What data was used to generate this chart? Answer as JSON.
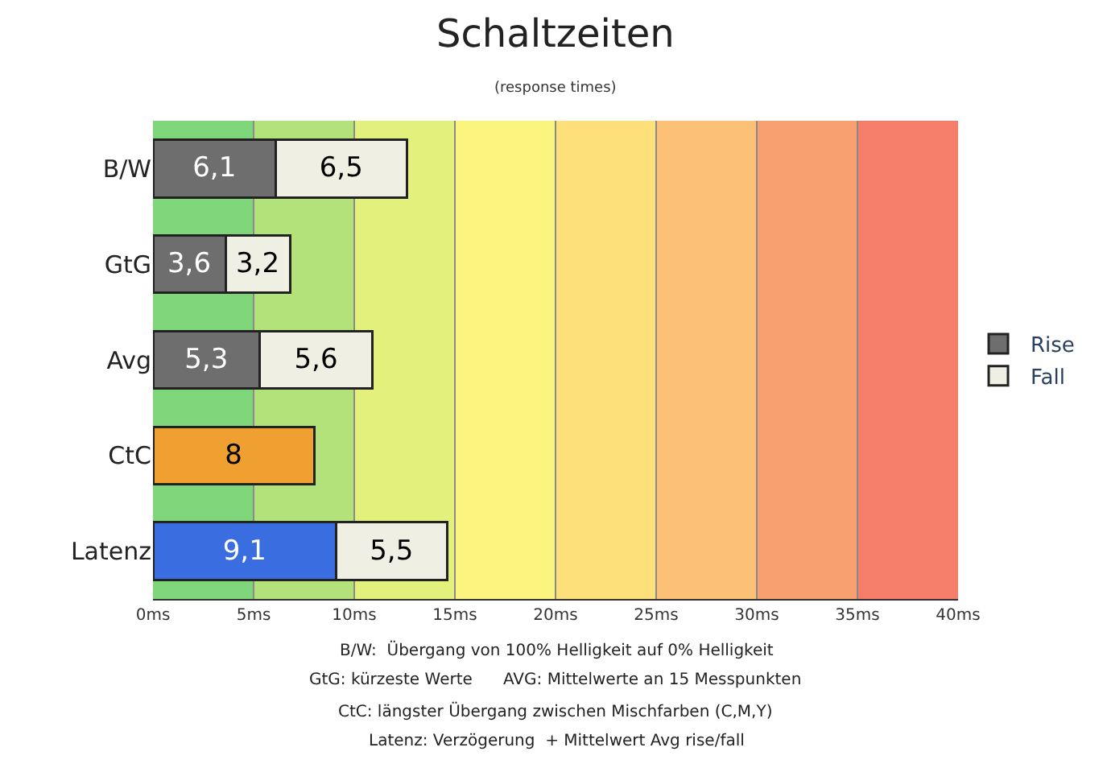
{
  "chart_data": {
    "type": "bar",
    "orientation": "horizontal",
    "stacked": true,
    "title": "Schaltzeiten",
    "subtitle": "(response times)",
    "categories": [
      "B/W",
      "GtG",
      "Avg",
      "CtC",
      "Latenz"
    ],
    "series": [
      {
        "name": "Rise",
        "color": "#6e6e6e",
        "colors": [
          null,
          null,
          null,
          "#f0a030",
          "#3a6ee0"
        ],
        "values": [
          6.1,
          3.6,
          5.3,
          8,
          9.1
        ],
        "value_labels": [
          "6,1",
          "3,6",
          "5,3",
          "8",
          "9,1"
        ]
      },
      {
        "name": "Fall",
        "color": "#efefe4",
        "values": [
          6.5,
          3.2,
          5.6,
          null,
          5.5
        ],
        "value_labels": [
          "6,5",
          "3,2",
          "5,6",
          null,
          "5,5"
        ]
      }
    ],
    "xlim": [
      0,
      40
    ],
    "xticks": [
      {
        "value": 0,
        "label": "0ms"
      },
      {
        "value": 5,
        "label": "5ms"
      },
      {
        "value": 10,
        "label": "10ms"
      },
      {
        "value": 15,
        "label": "15ms"
      },
      {
        "value": 20,
        "label": "20ms"
      },
      {
        "value": 25,
        "label": "25ms"
      },
      {
        "value": 30,
        "label": "30ms"
      },
      {
        "value": 35,
        "label": "35ms"
      },
      {
        "value": 40,
        "label": "40ms"
      }
    ],
    "grid": "x",
    "legend": "right",
    "bands": [
      {
        "axis": "x",
        "from": 0,
        "to": 5,
        "color": "#7fd67a"
      },
      {
        "axis": "x",
        "from": 5,
        "to": 10,
        "color": "#b4e27a"
      },
      {
        "axis": "x",
        "from": 10,
        "to": 15,
        "color": "#e4f07c"
      },
      {
        "axis": "x",
        "from": 15,
        "to": 20,
        "color": "#fbf47e"
      },
      {
        "axis": "x",
        "from": 20,
        "to": 25,
        "color": "#fde07a"
      },
      {
        "axis": "x",
        "from": 25,
        "to": 30,
        "color": "#fcc176"
      },
      {
        "axis": "x",
        "from": 30,
        "to": 35,
        "color": "#f9a070"
      },
      {
        "axis": "x",
        "from": 35,
        "to": 40,
        "color": "#f47e6a"
      }
    ],
    "annotations": [
      "B/W:  Übergang von 100% Helligkeit auf 0% Helligkeit",
      "GtG: kürzeste Werte      AVG: Mittelwerte an 15 Messpunkten",
      "CtC: längster Übergang zwischen Mischfarben (C,M,Y)",
      "Latenz: Verzögerung  + Mittelwert Avg rise/fall"
    ]
  }
}
